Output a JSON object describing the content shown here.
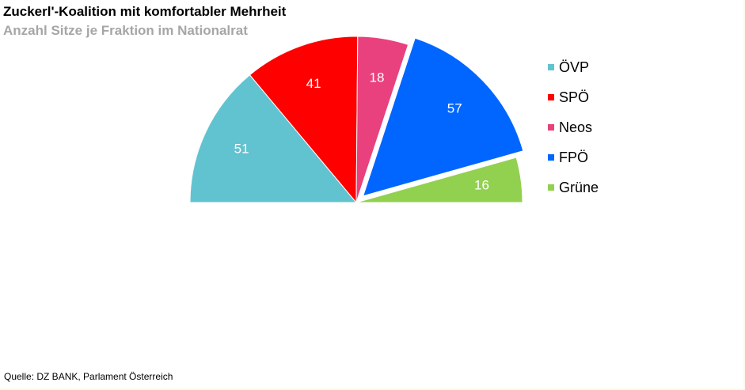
{
  "title": "Zuckerl'-Koalition mit komfortabler Mehrheit",
  "subtitle": "Anzahl Sitze je Fraktion im Nationalrat",
  "source": "Quelle: DZ BANK, Parlament Österreich",
  "chart_data": {
    "type": "pie",
    "variant": "semicircle",
    "title": "Zuckerl'-Koalition mit komfortabler Mehrheit",
    "subtitle": "Anzahl Sitze je Fraktion im Nationalrat",
    "legend_position": "right",
    "categories": [
      "ÖVP",
      "SPÖ",
      "Neos",
      "FPÖ",
      "Grüne"
    ],
    "values": [
      51,
      41,
      18,
      57,
      16
    ],
    "colors": [
      "#62c3d0",
      "#ff0000",
      "#e8417d",
      "#0066ff",
      "#92d050"
    ],
    "exploded": [
      false,
      false,
      false,
      true,
      false
    ],
    "data_label_colors": [
      "#ffffff",
      "#ffffff",
      "#ffffff",
      "#ffffff",
      "#ffffff"
    ]
  }
}
